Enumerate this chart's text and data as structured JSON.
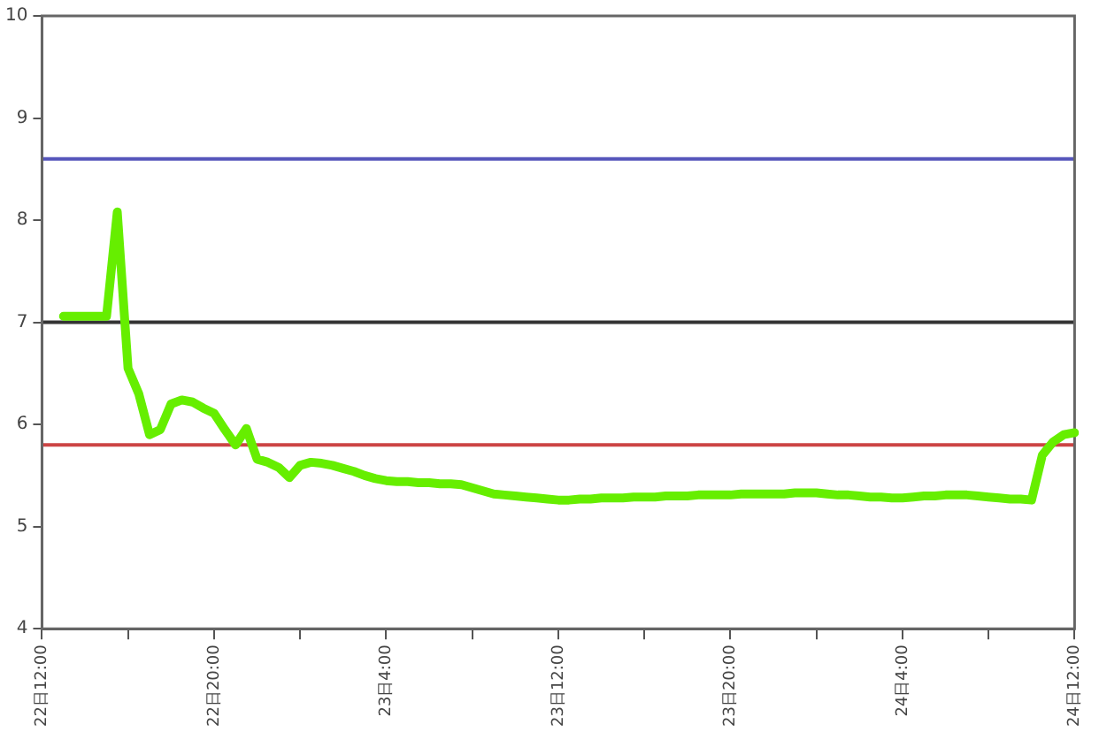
{
  "chart_data": {
    "type": "line",
    "categories": [
      "22日12:00",
      null,
      null,
      null,
      null,
      null,
      null,
      null,
      null,
      null,
      null,
      null,
      null,
      null,
      null,
      null,
      "22日20:00",
      null,
      null,
      null,
      null,
      null,
      null,
      null,
      null,
      null,
      null,
      null,
      null,
      null,
      null,
      null,
      "23日4:00",
      null,
      null,
      null,
      null,
      null,
      null,
      null,
      null,
      null,
      null,
      null,
      null,
      null,
      null,
      null,
      "23日12:00",
      null,
      null,
      null,
      null,
      null,
      null,
      null,
      null,
      null,
      null,
      null,
      null,
      null,
      null,
      null,
      "23日20:00",
      null,
      null,
      null,
      null,
      null,
      null,
      null,
      null,
      null,
      null,
      null,
      null,
      null,
      null,
      null,
      "24日4:00",
      null,
      null,
      null,
      null,
      null,
      null,
      null,
      null,
      null,
      null,
      null,
      null,
      null,
      null,
      null,
      "24日12:00"
    ],
    "series": [
      {
        "color": "#66ee00",
        "values": [
          null,
          null,
          7.06,
          7.06,
          7.06,
          7.06,
          7.06,
          8.08,
          6.55,
          6.3,
          5.9,
          5.95,
          6.2,
          6.24,
          6.22,
          6.16,
          6.11,
          5.95,
          5.8,
          5.96,
          5.66,
          5.63,
          5.58,
          5.48,
          5.6,
          5.63,
          5.62,
          5.6,
          5.57,
          5.54,
          5.5,
          5.47,
          5.45,
          5.44,
          5.44,
          5.43,
          5.43,
          5.42,
          5.42,
          5.41,
          5.38,
          5.35,
          5.32,
          5.31,
          5.3,
          5.29,
          5.28,
          5.27,
          5.26,
          5.26,
          5.27,
          5.27,
          5.28,
          5.28,
          5.28,
          5.29,
          5.29,
          5.29,
          5.3,
          5.3,
          5.3,
          5.31,
          5.31,
          5.31,
          5.31,
          5.32,
          5.32,
          5.32,
          5.32,
          5.32,
          5.33,
          5.33,
          5.33,
          5.32,
          5.31,
          5.31,
          5.3,
          5.29,
          5.29,
          5.28,
          5.28,
          5.29,
          5.3,
          5.3,
          5.31,
          5.31,
          5.31,
          5.3,
          5.29,
          5.28,
          5.27,
          5.27,
          5.26,
          5.7,
          5.83,
          5.9,
          5.92
        ]
      }
    ],
    "ylim": [
      4,
      10
    ],
    "yticks": [
      4,
      5,
      6,
      7,
      8,
      9,
      10
    ],
    "ref_lines": [
      {
        "axis": "y",
        "value": 8.6,
        "color": "#5555bb"
      },
      {
        "axis": "y",
        "value": 7.0,
        "color": "#333333"
      },
      {
        "axis": "y",
        "value": 5.8,
        "color": "#cc4444"
      }
    ],
    "grid": false,
    "legend": false,
    "marker": "none",
    "line_style": "solid"
  }
}
